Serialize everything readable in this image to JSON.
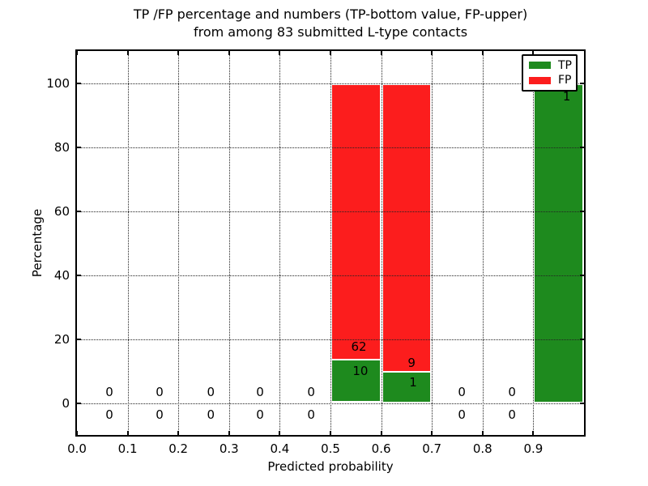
{
  "chart_data": {
    "type": "bar",
    "stacked": true,
    "title_line1": "TP /FP percentage and numbers (TP-bottom value, FP-upper)",
    "title_line2": "from among 83 submitted L-type contacts",
    "xlabel": "Predicted probability",
    "ylabel": "Percentage",
    "total_submitted_contacts": 83,
    "xlim": [
      0,
      1
    ],
    "ylim": [
      -10,
      110
    ],
    "x_tick_labels": [
      "0.0",
      "0.1",
      "0.2",
      "0.3",
      "0.4",
      "0.5",
      "0.6",
      "0.7",
      "0.8",
      "0.9"
    ],
    "x_tick_values": [
      0.0,
      0.1,
      0.2,
      0.3,
      0.4,
      0.5,
      0.6,
      0.7,
      0.8,
      0.9
    ],
    "y_tick_labels": [
      "0",
      "20",
      "40",
      "60",
      "80",
      "100"
    ],
    "y_tick_values": [
      0,
      20,
      40,
      60,
      80,
      100
    ],
    "grid": "dotted both axes, drawn above bars",
    "legend": {
      "position": "upper right",
      "items": [
        {
          "label": "TP",
          "color": "#1e8a1e"
        },
        {
          "label": "FP",
          "color": "#fc1d1d"
        }
      ]
    },
    "bins": [
      {
        "x_left": 0.0,
        "x_right": 0.1,
        "tp": 0,
        "fp": 0,
        "tp_pct": 0,
        "fp_pct": 0
      },
      {
        "x_left": 0.1,
        "x_right": 0.2,
        "tp": 0,
        "fp": 0,
        "tp_pct": 0,
        "fp_pct": 0
      },
      {
        "x_left": 0.2,
        "x_right": 0.3,
        "tp": 0,
        "fp": 0,
        "tp_pct": 0,
        "fp_pct": 0
      },
      {
        "x_left": 0.3,
        "x_right": 0.4,
        "tp": 0,
        "fp": 0,
        "tp_pct": 0,
        "fp_pct": 0
      },
      {
        "x_left": 0.4,
        "x_right": 0.5,
        "tp": 0,
        "fp": 0,
        "tp_pct": 0,
        "fp_pct": 0
      },
      {
        "x_left": 0.5,
        "x_right": 0.6,
        "tp": 10,
        "fp": 62,
        "tp_pct": 13.89,
        "fp_pct": 86.11
      },
      {
        "x_left": 0.6,
        "x_right": 0.7,
        "tp": 1,
        "fp": 9,
        "tp_pct": 10.0,
        "fp_pct": 90.0
      },
      {
        "x_left": 0.7,
        "x_right": 0.8,
        "tp": 0,
        "fp": 0,
        "tp_pct": 0,
        "fp_pct": 0
      },
      {
        "x_left": 0.8,
        "x_right": 0.9,
        "tp": 0,
        "fp": 0,
        "tp_pct": 0,
        "fp_pct": 0
      },
      {
        "x_left": 0.9,
        "x_right": 1.0,
        "tp": 1,
        "fp": 0,
        "tp_pct": 100.0,
        "fp_pct": 0
      }
    ],
    "annotations": [
      {
        "text": "0",
        "x": 0.064,
        "y": 3.3
      },
      {
        "text": "0",
        "x": 0.064,
        "y": -3.6
      },
      {
        "text": "0",
        "x": 0.163,
        "y": 3.3
      },
      {
        "text": "0",
        "x": 0.163,
        "y": -3.6
      },
      {
        "text": "0",
        "x": 0.264,
        "y": 3.3
      },
      {
        "text": "0",
        "x": 0.264,
        "y": -3.6
      },
      {
        "text": "0",
        "x": 0.361,
        "y": 3.3
      },
      {
        "text": "0",
        "x": 0.361,
        "y": -3.6
      },
      {
        "text": "0",
        "x": 0.462,
        "y": 3.3
      },
      {
        "text": "0",
        "x": 0.462,
        "y": -3.6
      },
      {
        "text": "62",
        "x": 0.556,
        "y": 17.6
      },
      {
        "text": "10",
        "x": 0.559,
        "y": 10.1
      },
      {
        "text": "9",
        "x": 0.66,
        "y": 12.6
      },
      {
        "text": "1",
        "x": 0.663,
        "y": 6.5
      },
      {
        "text": "0",
        "x": 0.759,
        "y": 3.3
      },
      {
        "text": "0",
        "x": 0.759,
        "y": -3.6
      },
      {
        "text": "0",
        "x": 0.858,
        "y": 3.3
      },
      {
        "text": "0",
        "x": 0.858,
        "y": -3.6
      },
      {
        "text": "1",
        "x": 0.966,
        "y": 95.8
      }
    ]
  }
}
